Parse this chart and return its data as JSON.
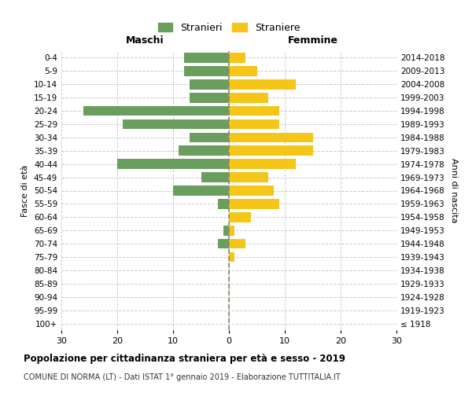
{
  "age_groups": [
    "0-4",
    "5-9",
    "10-14",
    "15-19",
    "20-24",
    "25-29",
    "30-34",
    "35-39",
    "40-44",
    "45-49",
    "50-54",
    "55-59",
    "60-64",
    "65-69",
    "70-74",
    "75-79",
    "80-84",
    "85-89",
    "90-94",
    "95-99",
    "100+"
  ],
  "birth_years": [
    "2014-2018",
    "2009-2013",
    "2004-2008",
    "1999-2003",
    "1994-1998",
    "1989-1993",
    "1984-1988",
    "1979-1983",
    "1974-1978",
    "1969-1973",
    "1964-1968",
    "1959-1963",
    "1954-1958",
    "1949-1953",
    "1944-1948",
    "1939-1943",
    "1934-1938",
    "1929-1933",
    "1924-1928",
    "1919-1923",
    "≤ 1918"
  ],
  "males": [
    8,
    8,
    7,
    7,
    26,
    19,
    7,
    9,
    20,
    5,
    10,
    2,
    0,
    1,
    2,
    0,
    0,
    0,
    0,
    0,
    0
  ],
  "females": [
    3,
    5,
    12,
    7,
    9,
    9,
    15,
    15,
    12,
    7,
    8,
    9,
    4,
    1,
    3,
    1,
    0,
    0,
    0,
    0,
    0
  ],
  "male_color": "#6a9e5e",
  "female_color": "#f5c518",
  "background_color": "#ffffff",
  "grid_color": "#cccccc",
  "title": "Popolazione per cittadinanza straniera per età e sesso - 2019",
  "subtitle": "COMUNE DI NORMA (LT) - Dati ISTAT 1° gennaio 2019 - Elaborazione TUTTITALIA.IT",
  "ylabel_left": "Fasce di età",
  "ylabel_right": "Anni di nascita",
  "xlabel_maschi": "Maschi",
  "xlabel_femmine": "Femmine",
  "legend_male": "Stranieri",
  "legend_female": "Straniere",
  "xlim": 30
}
